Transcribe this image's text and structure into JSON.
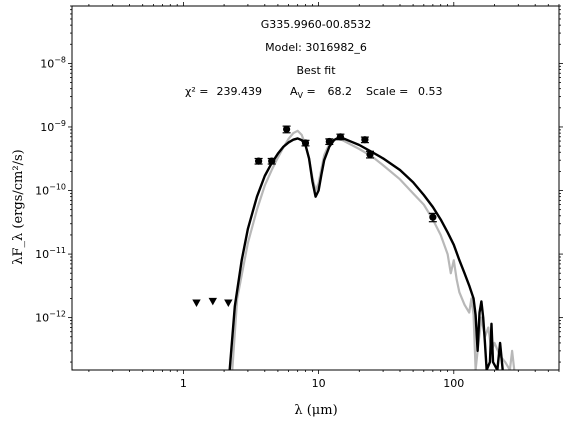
{
  "chart_data": {
    "type": "line",
    "source_name": "G335.9960-00.8532",
    "model_label": "Model: 3016982_6",
    "fit_label": "Best fit",
    "fit_stats": {
      "chi2_label": "χ² =",
      "chi2": "239.439",
      "av_label": "A",
      "av_sub": "V",
      "av_eq": " =",
      "av": "68.2",
      "scale_label": "Scale =",
      "scale": "0.53"
    },
    "xlabel": "λ (μm)",
    "ylabel": "λF_λ (ergs/cm²/s)",
    "x_scale": "log",
    "y_scale": "log",
    "xlim": [
      0.15,
      600
    ],
    "ylim": [
      1.5e-13,
      8e-08
    ],
    "x_ticks": [
      {
        "value": 1,
        "label": "1"
      },
      {
        "value": 10,
        "label": "10"
      },
      {
        "value": 100,
        "label": "100"
      }
    ],
    "y_ticks": [
      {
        "value": 1e-12,
        "label": "10",
        "exp": "−12"
      },
      {
        "value": 1e-11,
        "label": "10",
        "exp": "−11"
      },
      {
        "value": 1e-10,
        "label": "10",
        "exp": "−10"
      },
      {
        "value": 1e-09,
        "label": "10",
        "exp": "−9"
      },
      {
        "value": 1e-08,
        "label": "10",
        "exp": "−8"
      }
    ],
    "grid": false,
    "series": [
      {
        "role": "model-gray",
        "color": "#b8b8b8",
        "points": [
          [
            2.3,
            1.5e-13
          ],
          [
            2.5,
            2e-12
          ],
          [
            3,
            1.5e-11
          ],
          [
            3.5,
            5e-11
          ],
          [
            4,
            1.2e-10
          ],
          [
            4.5,
            2.1e-10
          ],
          [
            5,
            3.3e-10
          ],
          [
            5.5,
            4.8e-10
          ],
          [
            6,
            6.5e-10
          ],
          [
            6.5,
            8e-10
          ],
          [
            7,
            8.7e-10
          ],
          [
            7.5,
            7.5e-10
          ],
          [
            8,
            5.2e-10
          ],
          [
            8.5,
            3.2e-10
          ],
          [
            9,
            1.6e-10
          ],
          [
            9.5,
            1e-10
          ],
          [
            10,
            1.3e-10
          ],
          [
            10.5,
            2.2e-10
          ],
          [
            11,
            3.6e-10
          ],
          [
            12,
            5.4e-10
          ],
          [
            13,
            6.3e-10
          ],
          [
            14,
            6.5e-10
          ],
          [
            15,
            6.2e-10
          ],
          [
            17,
            5.4e-10
          ],
          [
            20,
            4.5e-10
          ],
          [
            25,
            3.4e-10
          ],
          [
            30,
            2.5e-10
          ],
          [
            40,
            1.5e-10
          ],
          [
            50,
            9e-11
          ],
          [
            60,
            6e-11
          ],
          [
            70,
            3.5e-11
          ],
          [
            80,
            2e-11
          ],
          [
            90,
            1e-11
          ],
          [
            95,
            5e-12
          ],
          [
            100,
            8e-12
          ],
          [
            105,
            4e-12
          ],
          [
            110,
            2.5e-12
          ],
          [
            120,
            1.6e-12
          ],
          [
            130,
            1.2e-12
          ],
          [
            135,
            2e-12
          ],
          [
            140,
            1.1e-12
          ],
          [
            145,
            1.5e-13
          ],
          [
            150,
            3e-13
          ],
          [
            160,
            1e-12
          ],
          [
            170,
            5e-13
          ],
          [
            180,
            7e-13
          ],
          [
            190,
            3e-13
          ],
          [
            200,
            4e-13
          ],
          [
            220,
            2.5e-13
          ],
          [
            240,
            2e-13
          ],
          [
            260,
            1.5e-13
          ],
          [
            270,
            3e-13
          ],
          [
            280,
            1.5e-13
          ]
        ]
      },
      {
        "role": "model-best",
        "color": "#000000",
        "points": [
          [
            2.2,
            1.5e-13
          ],
          [
            2.4,
            1.5e-12
          ],
          [
            2.7,
            8e-12
          ],
          [
            3,
            2.5e-11
          ],
          [
            3.5,
            8e-11
          ],
          [
            4,
            1.7e-10
          ],
          [
            4.5,
            2.7e-10
          ],
          [
            5,
            3.8e-10
          ],
          [
            5.5,
            4.9e-10
          ],
          [
            6,
            5.7e-10
          ],
          [
            6.5,
            6.3e-10
          ],
          [
            7,
            6.6e-10
          ],
          [
            7.5,
            6.2e-10
          ],
          [
            8,
            5.2e-10
          ],
          [
            8.5,
            3.2e-10
          ],
          [
            9,
            1.4e-10
          ],
          [
            9.5,
            8e-11
          ],
          [
            10,
            1e-10
          ],
          [
            10.5,
            1.8e-10
          ],
          [
            11,
            3e-10
          ],
          [
            12,
            4.9e-10
          ],
          [
            13,
            6.2e-10
          ],
          [
            14,
            6.8e-10
          ],
          [
            15,
            6.7e-10
          ],
          [
            17,
            6e-10
          ],
          [
            20,
            5.2e-10
          ],
          [
            25,
            4e-10
          ],
          [
            30,
            3.2e-10
          ],
          [
            40,
            2.1e-10
          ],
          [
            50,
            1.35e-10
          ],
          [
            60,
            8.5e-11
          ],
          [
            70,
            5.5e-11
          ],
          [
            80,
            3.5e-11
          ],
          [
            90,
            2.2e-11
          ],
          [
            100,
            1.4e-11
          ],
          [
            110,
            8e-12
          ],
          [
            120,
            5e-12
          ],
          [
            130,
            3.2e-12
          ],
          [
            140,
            2e-12
          ],
          [
            145,
            1.1e-12
          ],
          [
            150,
            3e-13
          ],
          [
            155,
            1.2e-12
          ],
          [
            160,
            1.8e-12
          ],
          [
            165,
            1e-12
          ],
          [
            170,
            4e-13
          ],
          [
            175,
            1.5e-13
          ],
          [
            185,
            2e-13
          ],
          [
            190,
            8e-13
          ],
          [
            195,
            2e-13
          ],
          [
            210,
            1.5e-13
          ],
          [
            220,
            4e-13
          ],
          [
            230,
            1.5e-13
          ]
        ]
      }
    ],
    "data_points": [
      {
        "x": 3.6,
        "y": 2.9e-10,
        "err_frac": 0.1
      },
      {
        "x": 4.5,
        "y": 2.9e-10,
        "err_frac": 0.1
      },
      {
        "x": 5.8,
        "y": 9.2e-10,
        "err_frac": 0.12
      },
      {
        "x": 8.0,
        "y": 5.6e-10,
        "err_frac": 0.1
      },
      {
        "x": 12.0,
        "y": 5.9e-10,
        "err_frac": 0.1
      },
      {
        "x": 14.5,
        "y": 7e-10,
        "err_frac": 0.1
      },
      {
        "x": 22.0,
        "y": 6.3e-10,
        "err_frac": 0.1
      },
      {
        "x": 24.0,
        "y": 3.7e-10,
        "err_frac": 0.12
      },
      {
        "x": 70.0,
        "y": 3.8e-11,
        "err_frac": 0.15
      }
    ],
    "upper_limits": [
      {
        "x": 1.25,
        "y": 1.7e-12
      },
      {
        "x": 1.65,
        "y": 1.8e-12
      },
      {
        "x": 2.15,
        "y": 1.7e-12
      }
    ]
  }
}
